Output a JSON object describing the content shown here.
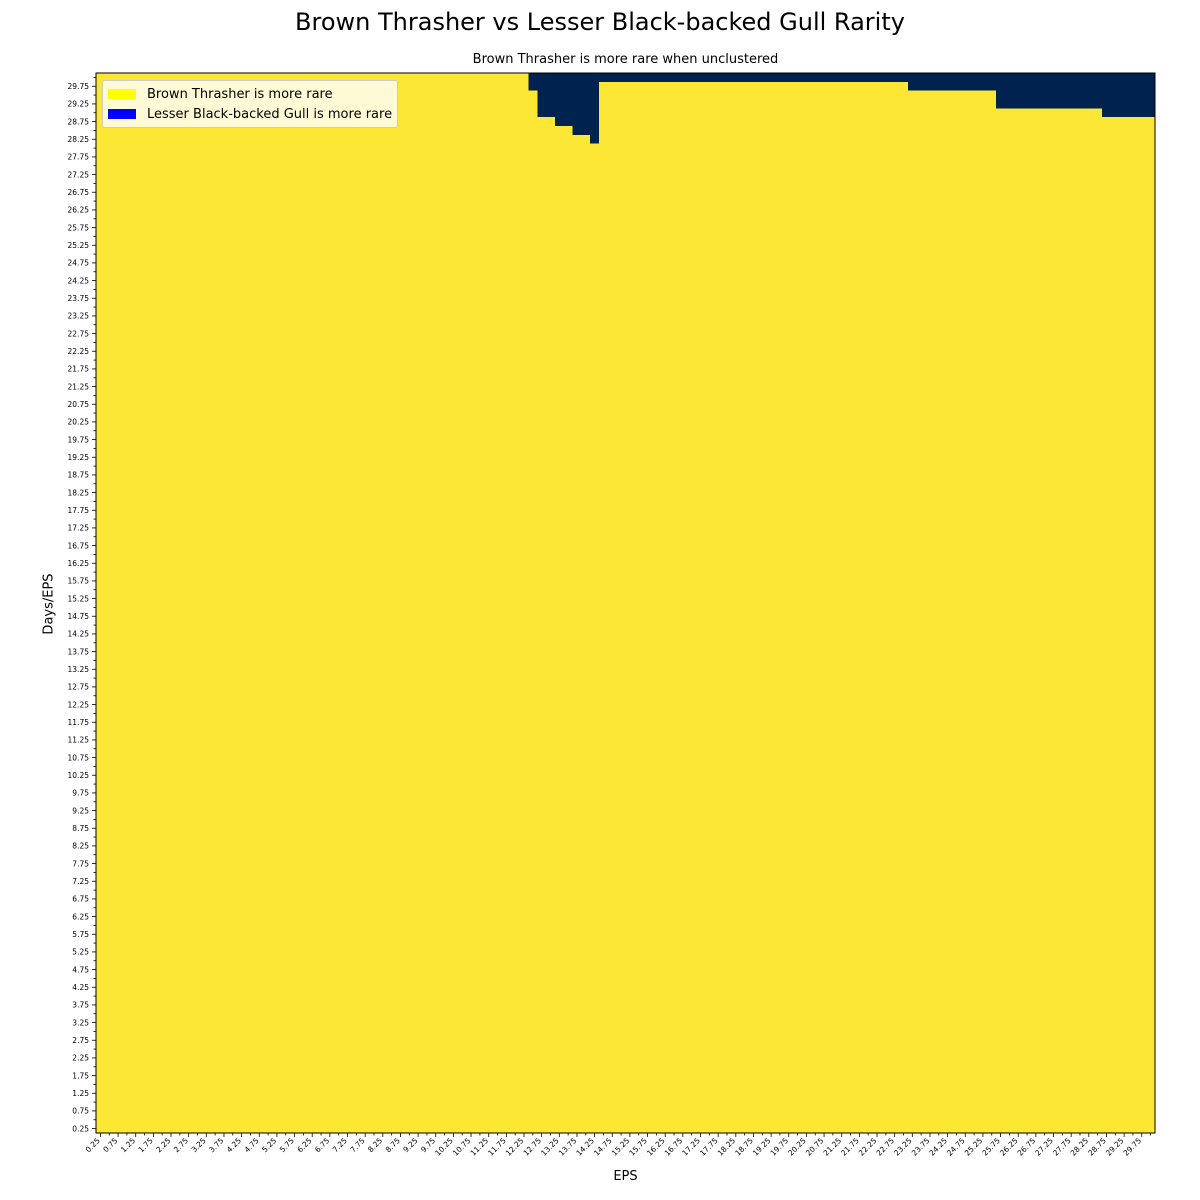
{
  "chart_data": {
    "type": "heatmap",
    "title": "Brown Thrasher vs Lesser Black-backed Gull Rarity",
    "subtitle": "Brown Thrasher is more rare when unclustered",
    "xlabel": "EPS",
    "ylabel": "Days/EPS",
    "x_start": 0.25,
    "x_step": 0.25,
    "x_count": 120,
    "x_tick_every": 2,
    "y_start": 0.25,
    "y_step": 0.25,
    "y_count": 120,
    "y_tick_every": 2,
    "x_tick_labels": [
      "0.25",
      "0.75",
      "1.25",
      "1.75",
      "2.25",
      "2.75",
      "3.25",
      "3.75",
      "4.25",
      "4.75",
      "5.25",
      "5.75",
      "6.25",
      "6.75",
      "7.25",
      "7.75",
      "8.25",
      "8.75",
      "9.25",
      "9.75",
      "10.25",
      "10.75",
      "11.25",
      "11.75",
      "12.25",
      "12.75",
      "13.25",
      "13.75",
      "14.25",
      "14.75",
      "15.25",
      "15.75",
      "16.25",
      "16.75",
      "17.25",
      "17.75",
      "18.25",
      "18.75",
      "19.25",
      "19.75",
      "20.25",
      "20.75",
      "21.25",
      "21.75",
      "22.25",
      "22.75",
      "23.25",
      "23.75",
      "24.25",
      "24.75",
      "25.25",
      "25.75",
      "26.25",
      "26.75",
      "27.25",
      "27.75",
      "28.25",
      "28.75",
      "29.25",
      "29.75"
    ],
    "y_tick_labels": [
      "0.25",
      "0.75",
      "1.25",
      "1.75",
      "2.25",
      "2.75",
      "3.25",
      "3.75",
      "4.25",
      "4.75",
      "5.25",
      "5.75",
      "6.25",
      "6.75",
      "7.25",
      "7.75",
      "8.25",
      "8.75",
      "9.25",
      "9.75",
      "10.25",
      "10.75",
      "11.25",
      "11.75",
      "12.25",
      "12.75",
      "13.25",
      "13.75",
      "14.25",
      "14.75",
      "15.25",
      "15.75",
      "16.25",
      "16.75",
      "17.25",
      "17.75",
      "18.25",
      "18.75",
      "19.25",
      "19.75",
      "20.25",
      "20.75",
      "21.25",
      "21.75",
      "22.25",
      "22.75",
      "23.25",
      "23.75",
      "24.25",
      "24.75",
      "25.25",
      "25.75",
      "26.25",
      "26.75",
      "27.25",
      "27.75",
      "28.25",
      "28.75",
      "29.25",
      "29.75"
    ],
    "default_class": "Brown Thrasher is more rare",
    "gull_rare_region": {
      "description": "For each EPS column range, Days/EPS values at or above min_y are classified as Lesser Black-backed Gull is more rare",
      "segments": [
        {
          "x_from": 12.5,
          "x_to": 12.5,
          "min_y": 29.75
        },
        {
          "x_from": 12.75,
          "x_to": 13.0,
          "min_y": 29.0
        },
        {
          "x_from": 13.25,
          "x_to": 13.5,
          "min_y": 28.75
        },
        {
          "x_from": 13.75,
          "x_to": 14.0,
          "min_y": 28.5
        },
        {
          "x_from": 14.25,
          "x_to": 14.25,
          "min_y": 28.25
        },
        {
          "x_from": 14.5,
          "x_to": 23.0,
          "min_y": 30.0
        },
        {
          "x_from": 23.25,
          "x_to": 25.5,
          "min_y": 29.75
        },
        {
          "x_from": 25.75,
          "x_to": 28.5,
          "min_y": 29.25
        },
        {
          "x_from": 28.75,
          "x_to": 30.0,
          "min_y": 29.0
        }
      ]
    },
    "legend": [
      {
        "label": "Brown Thrasher is more rare",
        "color": "#ffff00"
      },
      {
        "label": "Lesser Black-backed Gull is more rare",
        "color": "#0000ff"
      }
    ],
    "cell_colors": {
      "thrasher": "#fde735",
      "gull": "#00224e"
    },
    "legend_position": "upper-left"
  }
}
